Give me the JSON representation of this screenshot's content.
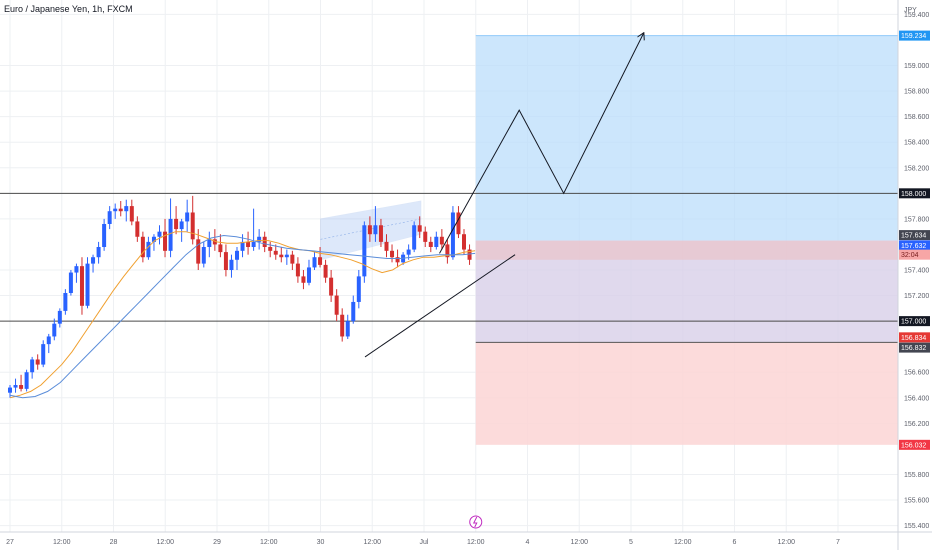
{
  "header": {
    "title": "Euro / Japanese Yen, 1h, FXCM",
    "currency": "JPY"
  },
  "colors": {
    "up": "#2962ff",
    "down": "#d32f2f",
    "ema_fast": "#f0a030",
    "ema_slow": "#5b8dd9",
    "target_zone": "#bbdefb",
    "stop_zone": "#fcd5d5",
    "entry_band": "#e8c8d0",
    "level_line": "#4a4a4a",
    "axis_text": "#5d606b",
    "grid": "#eef0f3"
  },
  "chart_data": {
    "type": "candlestick",
    "symbol": "Euro / Japanese Yen, 1h, FXCM",
    "ylim": [
      155.35,
      159.45
    ],
    "y_ticks": [
      "159.400",
      "159.000",
      "158.800",
      "158.600",
      "158.400",
      "158.200",
      "157.800",
      "157.400",
      "157.200",
      "156.600",
      "156.400",
      "156.200",
      "155.800",
      "155.600",
      "155.400"
    ],
    "x_ticks": [
      "27",
      "12:00",
      "28",
      "12:00",
      "29",
      "12:00",
      "30",
      "12:00",
      "Jul",
      "12:00",
      "4",
      "12:00",
      "5",
      "12:00",
      "6",
      "12:00",
      "7"
    ],
    "price_labels": [
      {
        "text": "159.234",
        "value": 159.234,
        "kind": "target"
      },
      {
        "text": "158.000",
        "value": 158.0,
        "kind": "level"
      },
      {
        "text": "157.634",
        "value": 157.634,
        "kind": "dark"
      },
      {
        "text": "157.632",
        "value": 157.632,
        "kind": "blue"
      },
      {
        "text": "32:04",
        "value": 157.5,
        "kind": "countdown"
      },
      {
        "text": "157.000",
        "value": 157.0,
        "kind": "level"
      },
      {
        "text": "156.834",
        "value": 156.834,
        "kind": "red"
      },
      {
        "text": "156.832",
        "value": 156.832,
        "kind": "dark"
      },
      {
        "text": "156.032",
        "value": 156.032,
        "kind": "stop"
      }
    ],
    "horizontal_levels": [
      158.0,
      157.0
    ],
    "position": {
      "entry": 157.63,
      "entry_low": 157.48,
      "target": 159.234,
      "stop": 156.032,
      "mid": 156.834
    },
    "candles": [
      [
        156.44,
        156.5,
        156.4,
        156.48
      ],
      [
        156.48,
        156.55,
        156.44,
        156.5
      ],
      [
        156.5,
        156.58,
        156.45,
        156.47
      ],
      [
        156.47,
        156.62,
        156.45,
        156.6
      ],
      [
        156.6,
        156.72,
        156.55,
        156.7
      ],
      [
        156.7,
        156.74,
        156.62,
        156.66
      ],
      [
        156.66,
        156.85,
        156.64,
        156.82
      ],
      [
        156.82,
        156.9,
        156.75,
        156.88
      ],
      [
        156.88,
        157.02,
        156.85,
        156.98
      ],
      [
        156.98,
        157.1,
        156.95,
        157.08
      ],
      [
        157.08,
        157.25,
        157.05,
        157.22
      ],
      [
        157.22,
        157.4,
        157.2,
        157.38
      ],
      [
        157.38,
        157.45,
        157.3,
        157.43
      ],
      [
        157.43,
        157.5,
        157.05,
        157.12
      ],
      [
        157.12,
        157.5,
        157.1,
        157.45
      ],
      [
        157.45,
        157.52,
        157.38,
        157.5
      ],
      [
        157.5,
        157.62,
        157.45,
        157.58
      ],
      [
        157.58,
        157.8,
        157.55,
        157.76
      ],
      [
        157.76,
        157.9,
        157.72,
        157.86
      ],
      [
        157.86,
        157.92,
        157.8,
        157.88
      ],
      [
        157.88,
        157.94,
        157.82,
        157.86
      ],
      [
        157.86,
        157.95,
        157.78,
        157.9
      ],
      [
        157.9,
        157.95,
        157.75,
        157.78
      ],
      [
        157.78,
        157.82,
        157.62,
        157.66
      ],
      [
        157.66,
        157.7,
        157.46,
        157.5
      ],
      [
        157.5,
        157.66,
        157.48,
        157.62
      ],
      [
        157.62,
        157.68,
        157.55,
        157.66
      ],
      [
        157.66,
        157.75,
        157.6,
        157.7
      ],
      [
        157.7,
        157.8,
        157.5,
        157.55
      ],
      [
        157.55,
        157.96,
        157.5,
        157.8
      ],
      [
        157.8,
        157.9,
        157.68,
        157.72
      ],
      [
        157.72,
        157.8,
        157.62,
        157.78
      ],
      [
        157.78,
        157.95,
        157.7,
        157.85
      ],
      [
        157.85,
        157.98,
        157.6,
        157.64
      ],
      [
        157.64,
        157.72,
        157.4,
        157.45
      ],
      [
        157.45,
        157.62,
        157.42,
        157.58
      ],
      [
        157.58,
        157.7,
        157.5,
        157.64
      ],
      [
        157.64,
        157.72,
        157.55,
        157.6
      ],
      [
        157.6,
        157.68,
        157.5,
        157.54
      ],
      [
        157.54,
        157.6,
        157.35,
        157.4
      ],
      [
        157.4,
        157.52,
        157.34,
        157.48
      ],
      [
        157.48,
        157.58,
        157.4,
        157.55
      ],
      [
        157.55,
        157.68,
        157.5,
        157.62
      ],
      [
        157.62,
        157.7,
        157.52,
        157.58
      ],
      [
        157.58,
        157.88,
        157.55,
        157.62
      ],
      [
        157.62,
        157.72,
        157.56,
        157.66
      ],
      [
        157.66,
        157.7,
        157.54,
        157.58
      ],
      [
        157.58,
        157.62,
        157.5,
        157.55
      ],
      [
        157.55,
        157.6,
        157.48,
        157.52
      ],
      [
        157.52,
        157.58,
        157.46,
        157.5
      ],
      [
        157.5,
        157.56,
        157.44,
        157.52
      ],
      [
        157.52,
        157.55,
        157.4,
        157.45
      ],
      [
        157.45,
        157.5,
        157.3,
        157.35
      ],
      [
        157.35,
        157.4,
        157.25,
        157.3
      ],
      [
        157.3,
        157.48,
        157.28,
        157.42
      ],
      [
        157.42,
        157.55,
        157.4,
        157.5
      ],
      [
        157.5,
        157.58,
        157.42,
        157.44
      ],
      [
        157.44,
        157.48,
        157.3,
        157.34
      ],
      [
        157.34,
        157.4,
        157.15,
        157.2
      ],
      [
        157.2,
        157.25,
        157.0,
        157.05
      ],
      [
        157.05,
        157.1,
        156.84,
        156.88
      ],
      [
        156.88,
        157.05,
        156.86,
        157.0
      ],
      [
        157.0,
        157.2,
        156.98,
        157.15
      ],
      [
        157.15,
        157.4,
        157.1,
        157.35
      ],
      [
        157.35,
        157.78,
        157.3,
        157.75
      ],
      [
        157.75,
        157.82,
        157.62,
        157.68
      ],
      [
        157.68,
        157.9,
        157.62,
        157.75
      ],
      [
        157.75,
        157.8,
        157.58,
        157.62
      ],
      [
        157.62,
        157.68,
        157.5,
        157.55
      ],
      [
        157.55,
        157.6,
        157.46,
        157.5
      ],
      [
        157.5,
        157.56,
        157.42,
        157.46
      ],
      [
        157.46,
        157.54,
        157.44,
        157.52
      ],
      [
        157.52,
        157.6,
        157.48,
        157.56
      ],
      [
        157.56,
        157.78,
        157.54,
        157.75
      ],
      [
        157.75,
        157.82,
        157.65,
        157.7
      ],
      [
        157.7,
        157.74,
        157.58,
        157.62
      ],
      [
        157.62,
        157.66,
        157.54,
        157.58
      ],
      [
        157.58,
        157.7,
        157.56,
        157.66
      ],
      [
        157.66,
        157.72,
        157.56,
        157.6
      ],
      [
        157.6,
        157.64,
        157.45,
        157.5
      ],
      [
        157.5,
        157.9,
        157.48,
        157.85
      ],
      [
        157.85,
        157.9,
        157.65,
        157.68
      ],
      [
        157.68,
        157.72,
        157.52,
        157.56
      ],
      [
        157.56,
        157.6,
        157.44,
        157.48
      ]
    ],
    "ema_fast": [
      156.4,
      156.42,
      156.45,
      156.5,
      156.58,
      156.66,
      156.76,
      156.88,
      157.0,
      157.12,
      157.24,
      157.35,
      157.45,
      157.55,
      157.63,
      157.67,
      157.7,
      157.7,
      157.68,
      157.65,
      157.62,
      157.61,
      157.61,
      157.62,
      157.63,
      157.63,
      157.61,
      157.58,
      157.56,
      157.55,
      157.53,
      157.52,
      157.5,
      157.48,
      157.45,
      157.41,
      157.38,
      157.4,
      157.45,
      157.48,
      157.5,
      157.5,
      157.51,
      157.52,
      157.54,
      157.55
    ],
    "ema_slow": [
      156.42,
      156.4,
      156.41,
      156.45,
      156.52,
      156.62,
      156.72,
      156.82,
      156.92,
      157.02,
      157.12,
      157.22,
      157.32,
      157.42,
      157.52,
      157.6,
      157.65,
      157.67,
      157.66,
      157.64,
      157.61,
      157.59,
      157.57,
      157.56,
      157.55,
      157.54,
      157.53,
      157.52,
      157.51,
      157.5,
      157.49,
      157.49,
      157.5,
      157.51,
      157.52,
      157.52,
      157.52,
      157.53
    ],
    "projection": [
      [
        157.53,
        4.15
      ],
      [
        158.65,
        4.92
      ],
      [
        158.0,
        5.35
      ],
      [
        159.25,
        6.12
      ]
    ]
  }
}
